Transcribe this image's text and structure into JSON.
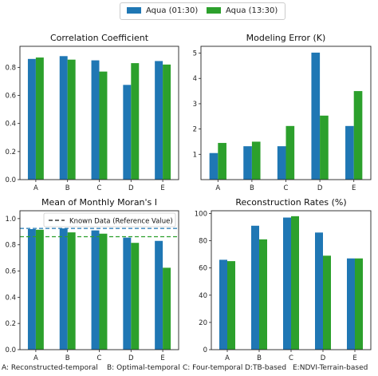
{
  "legend": {
    "items": [
      {
        "label": "Aqua (01:30)",
        "color": "#1f77b4"
      },
      {
        "label": "Aqua (13:30)",
        "color": "#2ca02c"
      }
    ]
  },
  "footer": {
    "items": [
      "A: Reconstructed-temporal",
      "B: Optimal-temporal",
      "C: Four-temporal",
      "D:TB-based",
      "E:NDVI-Terrain-based"
    ]
  },
  "chart_data": [
    {
      "type": "bar",
      "title": "Correlation Coefficient",
      "categories": [
        "A",
        "B",
        "C",
        "D",
        "E"
      ],
      "series": [
        {
          "name": "Aqua (01:30)",
          "values": [
            0.86,
            0.88,
            0.85,
            0.675,
            0.845
          ]
        },
        {
          "name": "Aqua (13:30)",
          "values": [
            0.87,
            0.855,
            0.77,
            0.83,
            0.82
          ]
        }
      ],
      "ylim": [
        0,
        0.95
      ],
      "yticks": [
        0.0,
        0.2,
        0.4,
        0.6,
        0.8
      ],
      "ytick_labels": [
        "0.0",
        "0.2",
        "0.4",
        "0.6",
        "0.8"
      ]
    },
    {
      "type": "bar",
      "title": "Modeling Error (K)",
      "categories": [
        "A",
        "B",
        "C",
        "D",
        "E"
      ],
      "series": [
        {
          "name": "Aqua (01:30)",
          "values": [
            1.05,
            1.32,
            1.32,
            5.02,
            2.12
          ]
        },
        {
          "name": "Aqua (13:30)",
          "values": [
            1.45,
            1.5,
            2.12,
            2.53,
            3.5
          ]
        }
      ],
      "ylim": [
        0,
        5.27
      ],
      "yticks": [
        1,
        2,
        3,
        4,
        5
      ],
      "ytick_labels": [
        "1",
        "2",
        "3",
        "4",
        "5"
      ]
    },
    {
      "type": "bar",
      "title": "Mean of Monthly Moran's I",
      "categories": [
        "A",
        "B",
        "C",
        "D",
        "E"
      ],
      "series": [
        {
          "name": "Aqua (01:30)",
          "values": [
            0.92,
            0.925,
            0.91,
            0.855,
            0.83
          ]
        },
        {
          "name": "Aqua (13:30)",
          "values": [
            0.915,
            0.895,
            0.885,
            0.815,
            0.625
          ]
        }
      ],
      "reference_lines": [
        {
          "value": 0.925,
          "color": "#1f77b4"
        },
        {
          "value": 0.862,
          "color": "#2ca02c"
        }
      ],
      "inner_legend": {
        "label": "Known Data (Reference Value)"
      },
      "ylim": [
        0,
        1.06
      ],
      "yticks": [
        0.0,
        0.2,
        0.4,
        0.6,
        0.8,
        1.0
      ],
      "ytick_labels": [
        "0.0",
        "0.2",
        "0.4",
        "0.6",
        "0.8",
        "1.0"
      ]
    },
    {
      "type": "bar",
      "title": "Reconstruction Rates (%)",
      "categories": [
        "A",
        "B",
        "C",
        "D",
        "E"
      ],
      "series": [
        {
          "name": "Aqua (01:30)",
          "values": [
            66,
            91,
            97,
            86,
            67
          ]
        },
        {
          "name": "Aqua (13:30)",
          "values": [
            65,
            81,
            98,
            69,
            67
          ]
        }
      ],
      "ylim": [
        0,
        102
      ],
      "yticks": [
        0,
        20,
        40,
        60,
        80,
        100
      ],
      "ytick_labels": [
        "0",
        "20",
        "40",
        "60",
        "80",
        "100"
      ]
    }
  ]
}
